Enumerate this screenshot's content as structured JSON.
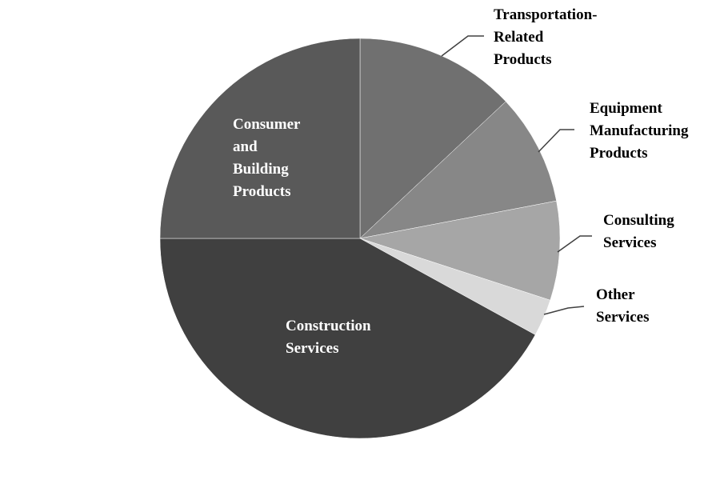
{
  "chart_data": {
    "type": "pie",
    "categories": [
      "Transportation-Related Products",
      "Equipment Manufacturing Products",
      "Consulting Services",
      "Other Services",
      "Construction Services",
      "Consumer and Building Products"
    ],
    "values": [
      13,
      9,
      8,
      3,
      42,
      25
    ],
    "colors": [
      "#707070",
      "#878787",
      "#a6a6a6",
      "#d9d9d9",
      "#404040",
      "#595959"
    ]
  }
}
